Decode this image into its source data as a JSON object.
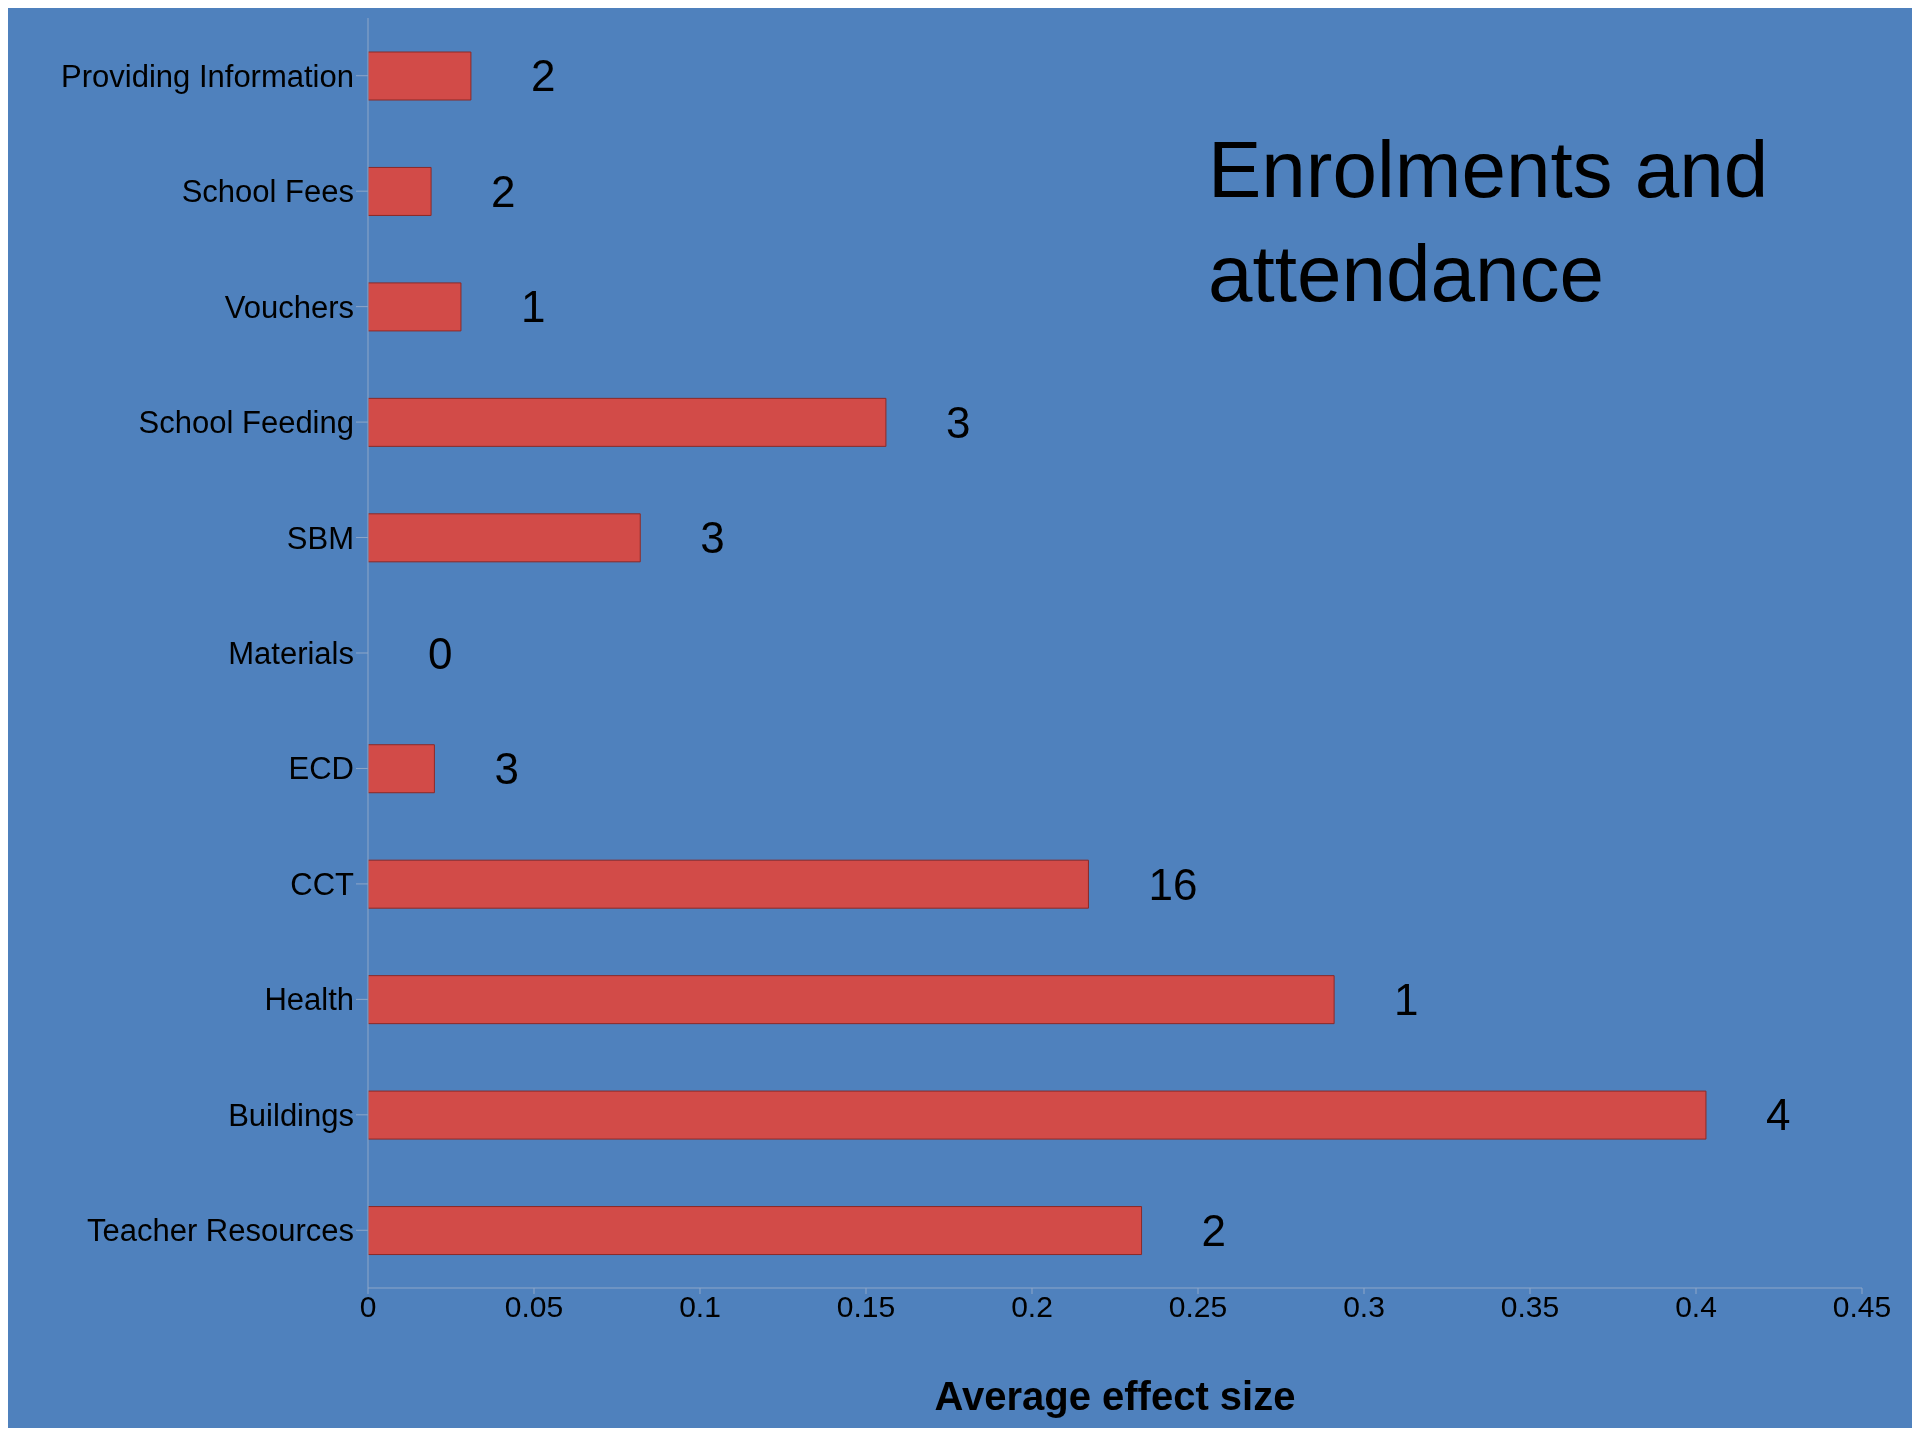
{
  "chart_data": {
    "type": "bar",
    "orientation": "horizontal",
    "title": "Enrolments and attendance",
    "xlabel": "Average effect size",
    "categories": [
      "Providing Information",
      "School Fees",
      "Vouchers",
      "School Feeding",
      "SBM",
      "Materials",
      "ECD",
      "CCT",
      "Health",
      "Buildings",
      "Teacher Resources"
    ],
    "values": [
      0.031,
      0.019,
      0.028,
      0.156,
      0.082,
      0,
      0.02,
      0.217,
      0.291,
      0.403,
      0.233
    ],
    "color": "#d24b48",
    "xlim": [
      0,
      0.45
    ],
    "xticks": [
      0,
      0.05,
      0.1,
      0.15,
      0.2,
      0.25,
      0.3,
      0.35,
      0.4,
      0.45
    ],
    "grid": false,
    "legend": false,
    "annotations": [
      {
        "text": "2",
        "x": 0.031,
        "y": "Providing Information"
      },
      {
        "text": "2",
        "x": 0.019,
        "y": "School Fees"
      },
      {
        "text": "1",
        "x": 0.028,
        "y": "Vouchers"
      },
      {
        "text": "3",
        "x": 0.156,
        "y": "School Feeding"
      },
      {
        "text": "3",
        "x": 0.082,
        "y": "SBM"
      },
      {
        "text": "0",
        "x": 0,
        "y": "Materials"
      },
      {
        "text": "3",
        "x": 0.02,
        "y": "ECD"
      },
      {
        "text": "16",
        "x": 0.217,
        "y": "CCT"
      },
      {
        "text": "1",
        "x": 0.291,
        "y": "Health"
      },
      {
        "text": "4",
        "x": 0.403,
        "y": "Buildings"
      },
      {
        "text": "2",
        "x": 0.233,
        "y": "Teacher Resources"
      }
    ]
  }
}
